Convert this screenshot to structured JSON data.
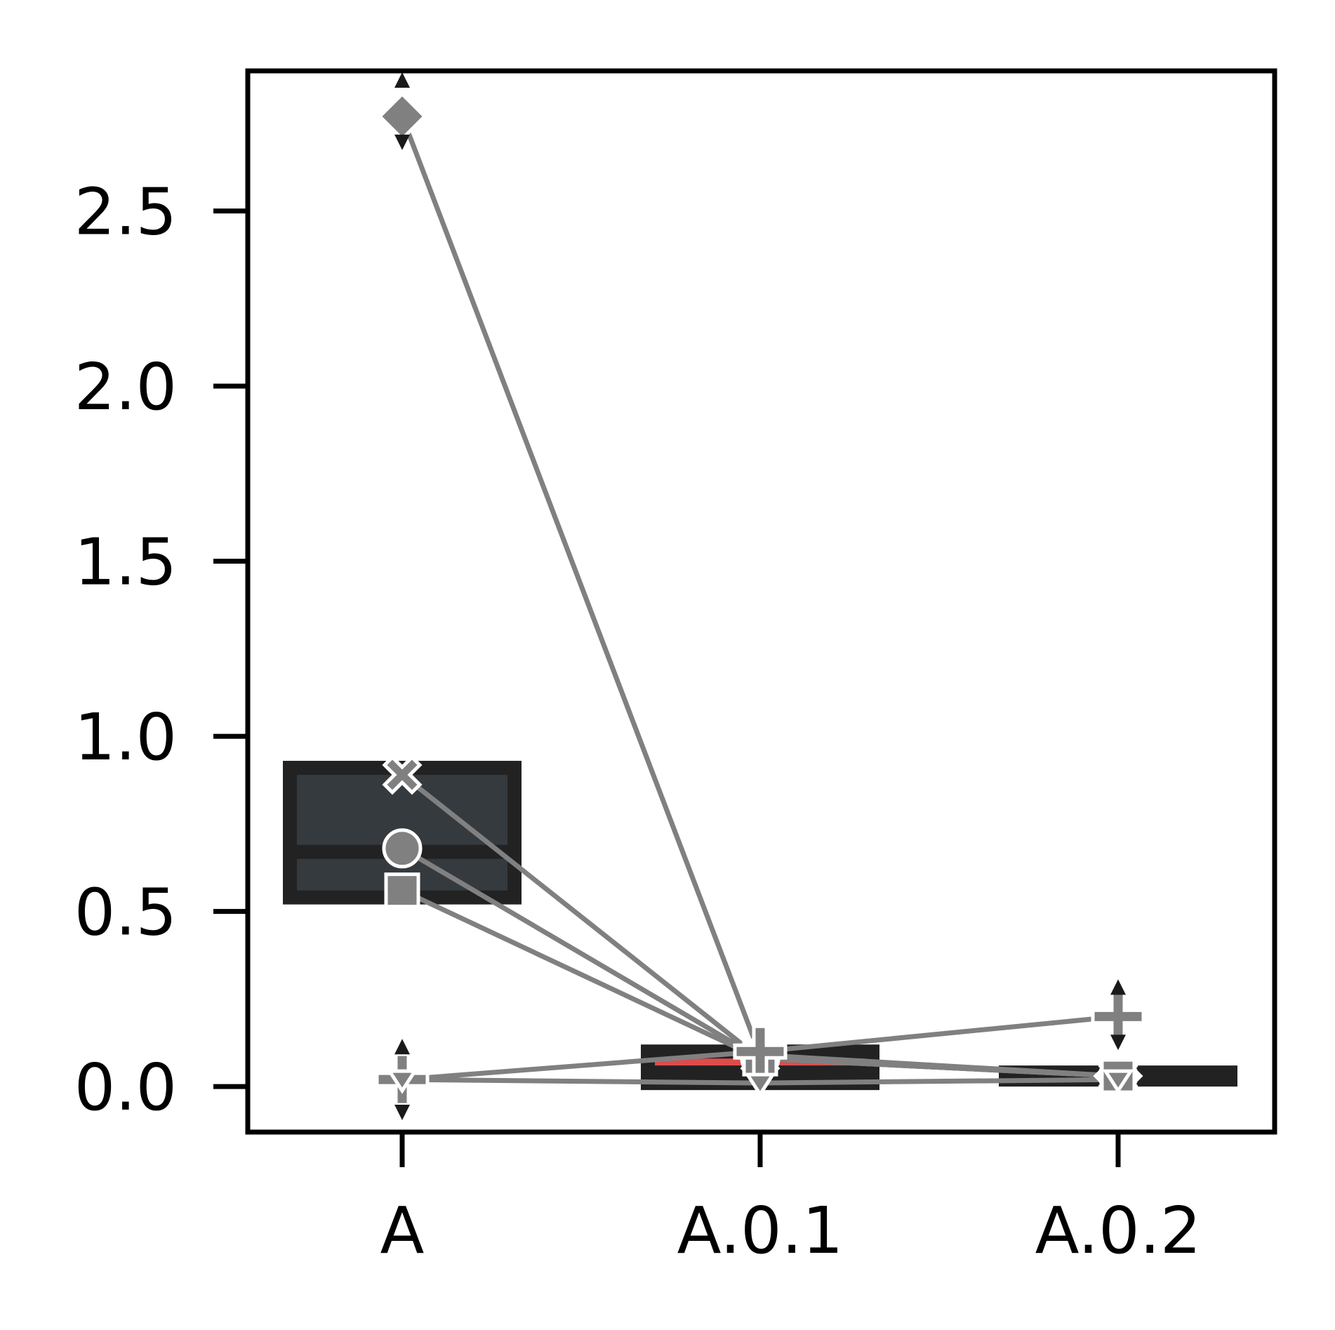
{
  "chart_data": {
    "type": "boxplot",
    "title": "",
    "xlabel": "",
    "ylabel": "",
    "categories": [
      "A",
      "A.0.1",
      "A.0.2"
    ],
    "ylim": [
      -0.13,
      2.9
    ],
    "yticks": [
      0.0,
      0.5,
      1.0,
      1.5,
      2.0,
      2.5
    ],
    "ytick_labels": [
      "0.0",
      "0.5",
      "1.0",
      "1.5",
      "2.0",
      "2.5"
    ],
    "grid": false,
    "boxes": [
      {
        "category": "A",
        "q1": 0.54,
        "median": 0.67,
        "q3": 0.91,
        "fill": "#353a3f",
        "edge": "#222222"
      },
      {
        "category": "A.0.1",
        "q1": 0.01,
        "median": 0.04,
        "q3": 0.1,
        "fill": "#e04b4b",
        "edge": "#222222"
      },
      {
        "category": "A.0.2",
        "q1": 0.02,
        "median": 0.03,
        "q3": 0.04,
        "fill": "#e04b4b",
        "edge": "#222222"
      }
    ],
    "series": [
      {
        "marker": "diamond",
        "values": [
          2.77,
          0.09,
          0.03
        ]
      },
      {
        "marker": "x",
        "values": [
          0.89,
          0.08,
          0.03
        ]
      },
      {
        "marker": "circle",
        "values": [
          0.68,
          0.08,
          0.03
        ]
      },
      {
        "marker": "square",
        "values": [
          0.56,
          0.08,
          0.03
        ]
      },
      {
        "marker": "plus",
        "values": [
          0.02,
          0.1,
          0.2
        ]
      },
      {
        "marker": "triangle-down",
        "values": [
          0.02,
          0.01,
          0.02
        ]
      }
    ],
    "series_color": "#808080",
    "error_markers": [
      {
        "category": "A",
        "center": 2.77,
        "low": 2.69,
        "high": 2.88
      },
      {
        "category": "A",
        "center": 0.02,
        "low": -0.08,
        "high": 0.12
      },
      {
        "category": "A.0.2",
        "center": 0.2,
        "low": 0.12,
        "high": 0.29
      }
    ]
  }
}
